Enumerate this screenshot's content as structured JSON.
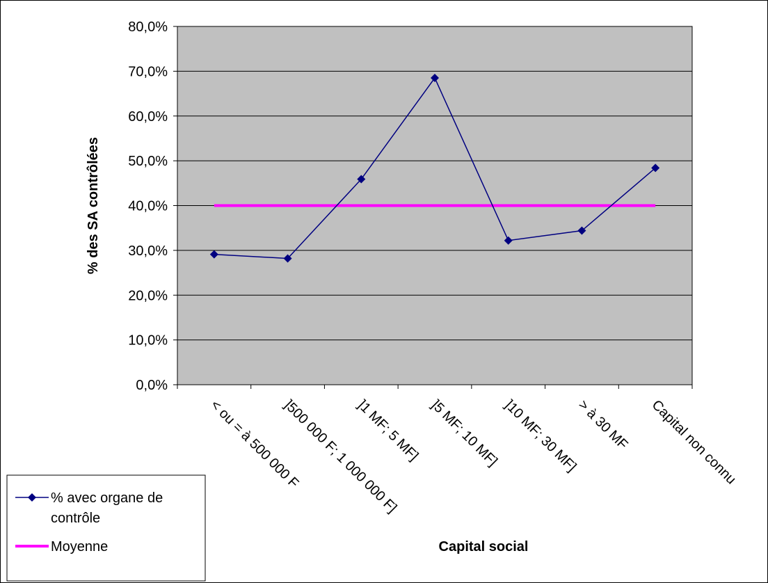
{
  "chart_data": {
    "type": "line",
    "categories": [
      "< ou = à 500 000 F",
      "]500 000 F; 1 000 000 F]",
      "]1 MF; 5 MF]",
      "]5 MF; 10 MF]",
      "]10 MF; 30 MF]",
      "> à 30 MF",
      "Capital non connu"
    ],
    "series": [
      {
        "name": "% avec organe de contrôle",
        "values": [
          29.1,
          28.2,
          45.9,
          68.5,
          32.2,
          34.4,
          48.4
        ],
        "color": "#000080",
        "marker": "diamond"
      },
      {
        "name": "Moyenne",
        "values": [
          40.0,
          40.0,
          40.0,
          40.0,
          40.0,
          40.0,
          40.0
        ],
        "color": "#ff00ff",
        "marker": "none"
      }
    ],
    "xlabel": "Capital social",
    "ylabel": "% des SA contrôlées",
    "ylim": [
      0,
      80
    ],
    "yticks": [
      "0,0%",
      "10,0%",
      "20,0%",
      "30,0%",
      "40,0%",
      "50,0%",
      "60,0%",
      "70,0%",
      "80,0%"
    ],
    "grid": true,
    "plot_background": "#c0c0c0",
    "legend_position": "bottom-left",
    "legend": {
      "entries": [
        {
          "line1": "% avec organe de",
          "line2": "contrôle"
        },
        {
          "line1": "Moyenne"
        }
      ]
    }
  }
}
